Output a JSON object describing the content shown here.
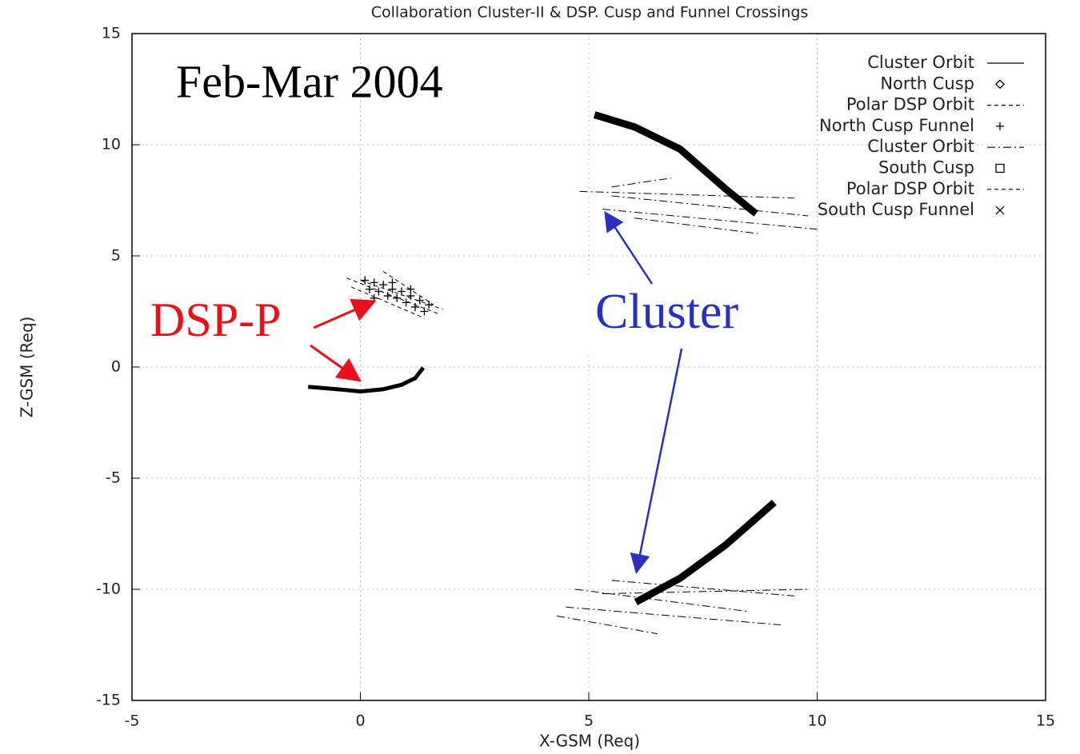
{
  "chart_data": {
    "type": "line",
    "title": "Collaboration Cluster-II & DSP. Cusp and Funnel Crossings",
    "x_label": "X-GSM (Req)",
    "y_label": "Z-GSM (Req)",
    "xlim": [
      -5,
      15
    ],
    "ylim": [
      -15,
      15
    ],
    "xticks": [
      -5,
      0,
      5,
      10,
      15
    ],
    "yticks": [
      -15,
      -10,
      -5,
      0,
      5,
      10,
      15
    ],
    "grid": true,
    "legend": "upper right",
    "annotations": [
      {
        "text": "Feb-Mar 2004",
        "color": "#000000"
      },
      {
        "text": "DSP-P",
        "color": "#e8101a"
      },
      {
        "text": "Cluster",
        "color": "#2a2fbf"
      }
    ],
    "series": [
      {
        "name": "Cluster Orbit",
        "color": "#000000",
        "style": "solid",
        "linewidth": 9,
        "marker": "none",
        "x": [
          5.2,
          6.0,
          7.0,
          8.0,
          8.6,
          null,
          6.1,
          7.0,
          8.0,
          9.0
        ],
        "y": [
          11.3,
          10.8,
          9.8,
          8.0,
          7.0,
          null,
          -10.5,
          -9.5,
          -8.0,
          -6.2
        ]
      },
      {
        "name": "North Cusp",
        "color": "#000000",
        "style": "none",
        "linewidth": 1,
        "marker": "diamond",
        "x": [],
        "y": []
      },
      {
        "name": "Polar DSP Orbit",
        "color": "#000000",
        "style": "dashed",
        "linewidth": 1,
        "marker": "none",
        "x": [
          -0.3,
          1.7,
          null,
          0.5,
          1.6,
          null,
          -0.2,
          1.4,
          null,
          0.0,
          1.8
        ],
        "y": [
          4.0,
          2.4,
          null,
          4.3,
          2.8,
          null,
          3.6,
          2.2,
          null,
          3.9,
          2.6
        ]
      },
      {
        "name": "North Cusp Funnel",
        "color": "#000000",
        "style": "none",
        "linewidth": 1,
        "marker": "plus",
        "x": [
          0.1,
          0.3,
          0.5,
          0.7,
          0.9,
          1.1,
          1.3,
          1.5,
          0.2,
          0.4,
          0.6,
          0.8,
          1.0,
          1.2,
          1.4,
          0.3,
          0.7,
          1.1
        ],
        "y": [
          3.9,
          3.8,
          3.7,
          3.5,
          3.4,
          3.2,
          3.0,
          2.8,
          3.5,
          3.4,
          3.2,
          3.1,
          2.9,
          2.7,
          2.5,
          3.1,
          3.8,
          3.5
        ]
      },
      {
        "name": "Cluster Orbit",
        "color": "#000000",
        "style": "dash-dot",
        "linewidth": 1,
        "marker": "none",
        "x": [
          4.8,
          9.5,
          null,
          5.5,
          9.8,
          null,
          5.3,
          10.0,
          null,
          5.5,
          6.8,
          null,
          6.0,
          8.7,
          null,
          4.5,
          9.2,
          null,
          4.3,
          6.5,
          null,
          5.3,
          9.8,
          null,
          4.7,
          8.5,
          null,
          5.5,
          9.5
        ],
        "y": [
          7.9,
          7.6,
          null,
          7.7,
          6.8,
          null,
          7.1,
          6.2,
          null,
          8.1,
          8.5,
          null,
          6.7,
          6.0,
          null,
          -10.8,
          -11.6,
          null,
          -11.2,
          -12.0,
          null,
          -10.2,
          -10.0,
          null,
          -10.0,
          -11.0,
          null,
          -9.6,
          -10.3
        ]
      },
      {
        "name": "South Cusp",
        "color": "#000000",
        "style": "none",
        "linewidth": 1,
        "marker": "square",
        "x": [],
        "y": []
      },
      {
        "name": "Polar DSP Orbit",
        "color": "#000000",
        "style": "dashed",
        "linewidth": 5,
        "marker": "none",
        "x": [
          -1.1,
          -0.5,
          0.0,
          0.5,
          0.9,
          1.2,
          1.35
        ],
        "y": [
          -0.9,
          -1.0,
          -1.1,
          -1.0,
          -0.8,
          -0.5,
          -0.1
        ]
      },
      {
        "name": "South Cusp Funnel",
        "color": "#000000",
        "style": "none",
        "linewidth": 1,
        "marker": "cross",
        "x": [],
        "y": []
      }
    ]
  }
}
